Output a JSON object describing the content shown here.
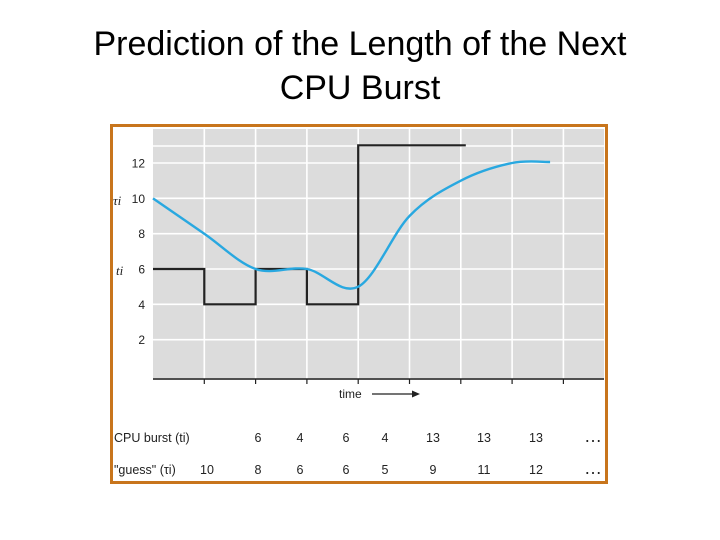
{
  "slide": {
    "title_line1": "Prediction of the Length of the Next",
    "title_line2": "CPU Burst"
  },
  "colors": {
    "frame": "#c8751c",
    "plot_bg": "#dcdcdc",
    "grid": "#ffffff",
    "burst_line": "#222222",
    "guess_curve": "#29a8e0"
  },
  "chart_data": {
    "type": "line",
    "title": "",
    "xlabel": "time",
    "ylabel_guess": "τi",
    "ylabel_burst": "ti",
    "ylim": [
      0,
      13
    ],
    "y_ticks": [
      "2",
      "4",
      "6",
      "8",
      "10",
      "12"
    ],
    "grid": true,
    "series": [
      {
        "name": "CPU burst (ti)",
        "style": "step",
        "values": [
          6,
          4,
          6,
          4,
          13,
          13,
          13
        ]
      },
      {
        "name": "\"guess\" (τi)",
        "style": "smooth",
        "values": [
          10,
          8,
          6,
          6,
          5,
          9,
          11,
          12
        ]
      }
    ],
    "table": {
      "rows": [
        {
          "label": "CPU burst (ti)",
          "values": [
            "6",
            "4",
            "6",
            "4",
            "13",
            "13",
            "13"
          ],
          "ellipsis": "…"
        },
        {
          "label": "\"guess\" (τi)",
          "values": [
            "10",
            "8",
            "6",
            "6",
            "5",
            "9",
            "11",
            "12"
          ],
          "ellipsis": "…"
        }
      ]
    }
  }
}
